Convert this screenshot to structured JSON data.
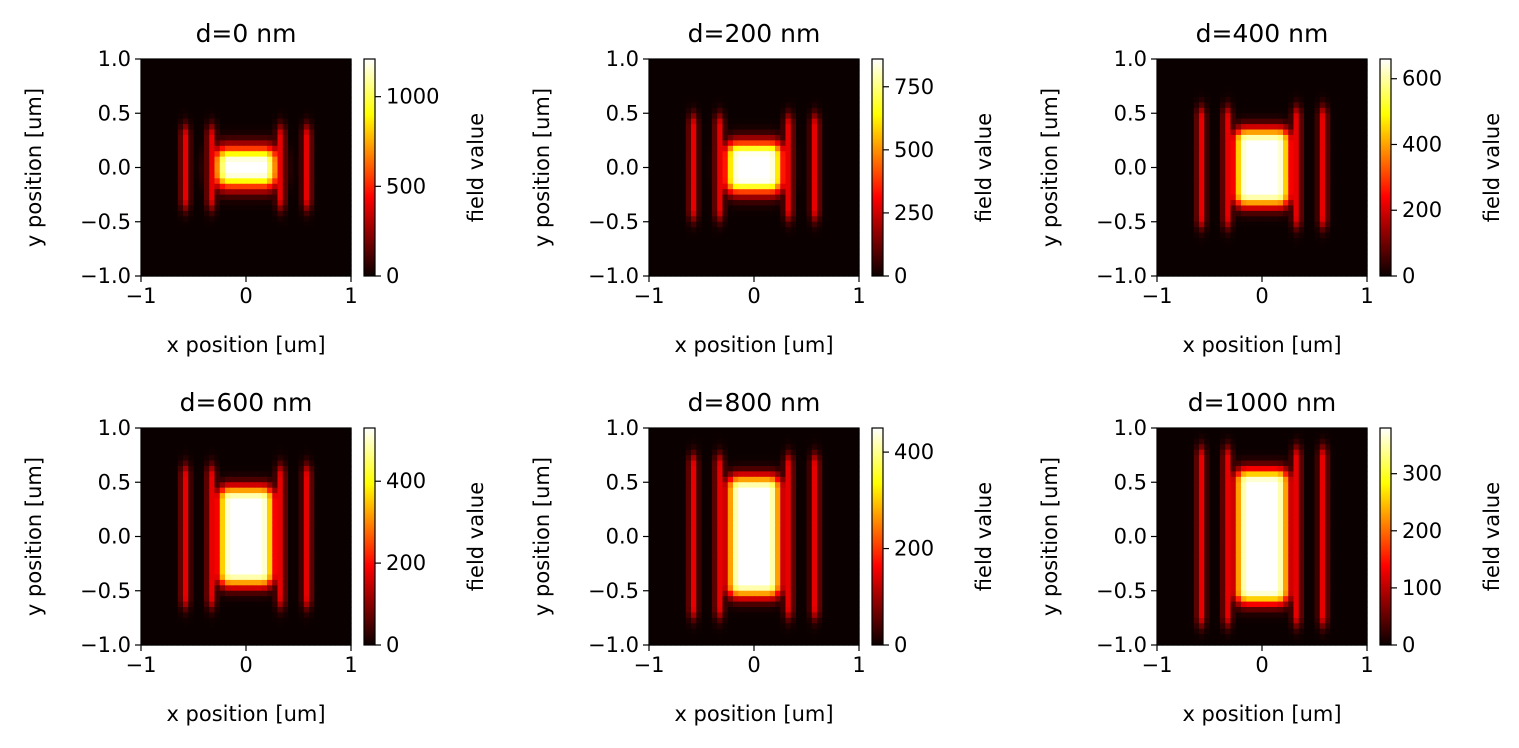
{
  "figure": {
    "rows": 2,
    "cols": 3
  },
  "colormap": "hot",
  "chart_data": [
    {
      "type": "heatmap",
      "title": "d=0 nm",
      "xlabel": "x position [um]",
      "ylabel": "y position [um]",
      "xlim": [
        -1,
        1
      ],
      "ylim": [
        -1,
        1
      ],
      "xticks": [
        -1,
        0,
        1
      ],
      "xtick_labels": [
        "−1",
        "0",
        "1"
      ],
      "yticks": [
        1.0,
        0.5,
        0.0,
        -0.5,
        -1.0
      ],
      "ytick_labels": [
        "1.0",
        "0.5",
        "0.0",
        "−0.5",
        "−1.0"
      ],
      "colorbar": {
        "label": "field value",
        "min": 0,
        "max": 1210,
        "ticks": [
          0,
          500,
          1000
        ],
        "tick_labels": [
          "0",
          "500",
          "1000"
        ]
      },
      "field": {
        "peak": 1210,
        "center": [
          0,
          0
        ],
        "core_half_width": 0.17,
        "core_half_height": 0.05,
        "edge_softness": 0.14,
        "fringe_x": [
          0.33,
          0.58
        ],
        "fringe_half_height": 0.28
      }
    },
    {
      "type": "heatmap",
      "title": "d=200 nm",
      "xlabel": "x position [um]",
      "ylabel": "y position [um]",
      "xlim": [
        -1,
        1
      ],
      "ylim": [
        -1,
        1
      ],
      "xticks": [
        -1,
        0,
        1
      ],
      "xtick_labels": [
        "−1",
        "0",
        "1"
      ],
      "yticks": [
        1.0,
        0.5,
        0.0,
        -0.5,
        -1.0
      ],
      "ytick_labels": [
        "1.0",
        "0.5",
        "0.0",
        "−0.5",
        "−1.0"
      ],
      "colorbar": {
        "label": "field value",
        "min": 0,
        "max": 860,
        "ticks": [
          0,
          250,
          500,
          750
        ],
        "tick_labels": [
          "0",
          "250",
          "500",
          "750"
        ]
      },
      "field": {
        "peak": 860,
        "center": [
          0,
          0
        ],
        "core_half_width": 0.15,
        "core_half_height": 0.11,
        "edge_softness": 0.13,
        "fringe_x": [
          0.33,
          0.58
        ],
        "fringe_half_height": 0.38
      }
    },
    {
      "type": "heatmap",
      "title": "d=400 nm",
      "xlabel": "x position [um]",
      "ylabel": "y position [um]",
      "xlim": [
        -1,
        1
      ],
      "ylim": [
        -1,
        1
      ],
      "xticks": [
        -1,
        0,
        1
      ],
      "xtick_labels": [
        "−1",
        "0",
        "1"
      ],
      "yticks": [
        1.0,
        0.5,
        0.0,
        -0.5,
        -1.0
      ],
      "ytick_labels": [
        "1.0",
        "0.5",
        "0.0",
        "−0.5",
        "−1.0"
      ],
      "colorbar": {
        "label": "field value",
        "min": 0,
        "max": 660,
        "ticks": [
          0,
          200,
          400,
          600
        ],
        "tick_labels": [
          "0",
          "200",
          "400",
          "600"
        ]
      },
      "field": {
        "peak": 660,
        "center": [
          0,
          0
        ],
        "core_half_width": 0.15,
        "core_half_height": 0.24,
        "edge_softness": 0.12,
        "fringe_x": [
          0.33,
          0.58
        ],
        "fringe_half_height": 0.45
      }
    },
    {
      "type": "heatmap",
      "title": "d=600 nm",
      "xlabel": "x position [um]",
      "ylabel": "y position [um]",
      "xlim": [
        -1,
        1
      ],
      "ylim": [
        -1,
        1
      ],
      "xticks": [
        -1,
        0,
        1
      ],
      "xtick_labels": [
        "−1",
        "0",
        "1"
      ],
      "yticks": [
        1.0,
        0.5,
        0.0,
        -0.5,
        -1.0
      ],
      "ytick_labels": [
        "1.0",
        "0.5",
        "0.0",
        "−0.5",
        "−1.0"
      ],
      "colorbar": {
        "label": "field value",
        "min": 0,
        "max": 530,
        "ticks": [
          0,
          200,
          400
        ],
        "tick_labels": [
          "0",
          "200",
          "400"
        ]
      },
      "field": {
        "peak": 530,
        "center": [
          0,
          0
        ],
        "core_half_width": 0.15,
        "core_half_height": 0.34,
        "edge_softness": 0.12,
        "fringe_x": [
          0.33,
          0.58
        ],
        "fringe_half_height": 0.55
      }
    },
    {
      "type": "heatmap",
      "title": "d=800 nm",
      "xlabel": "x position [um]",
      "ylabel": "y position [um]",
      "xlim": [
        -1,
        1
      ],
      "ylim": [
        -1,
        1
      ],
      "xticks": [
        -1,
        0,
        1
      ],
      "xtick_labels": [
        "−1",
        "0",
        "1"
      ],
      "yticks": [
        1.0,
        0.5,
        0.0,
        -0.5,
        -1.0
      ],
      "ytick_labels": [
        "1.0",
        "0.5",
        "0.0",
        "−0.5",
        "−1.0"
      ],
      "colorbar": {
        "label": "field value",
        "min": 0,
        "max": 450,
        "ticks": [
          0,
          200,
          400
        ],
        "tick_labels": [
          "0",
          "200",
          "400"
        ]
      },
      "field": {
        "peak": 450,
        "center": [
          0,
          0
        ],
        "core_half_width": 0.14,
        "core_half_height": 0.44,
        "edge_softness": 0.12,
        "fringe_x": [
          0.33,
          0.58
        ],
        "fringe_half_height": 0.65
      }
    },
    {
      "type": "heatmap",
      "title": "d=1000 nm",
      "xlabel": "x position [um]",
      "ylabel": "y position [um]",
      "xlim": [
        -1,
        1
      ],
      "ylim": [
        -1,
        1
      ],
      "xticks": [
        -1,
        0,
        1
      ],
      "xtick_labels": [
        "−1",
        "0",
        "1"
      ],
      "yticks": [
        1.0,
        0.5,
        0.0,
        -0.5,
        -1.0
      ],
      "ytick_labels": [
        "1.0",
        "0.5",
        "0.0",
        "−0.5",
        "−1.0"
      ],
      "colorbar": {
        "label": "field value",
        "min": 0,
        "max": 380,
        "ticks": [
          0,
          100,
          200,
          300
        ],
        "tick_labels": [
          "0",
          "100",
          "200",
          "300"
        ]
      },
      "field": {
        "peak": 380,
        "center": [
          0,
          0
        ],
        "core_half_width": 0.14,
        "core_half_height": 0.5,
        "edge_softness": 0.12,
        "fringe_x": [
          0.33,
          0.58
        ],
        "fringe_half_height": 0.72
      }
    }
  ]
}
